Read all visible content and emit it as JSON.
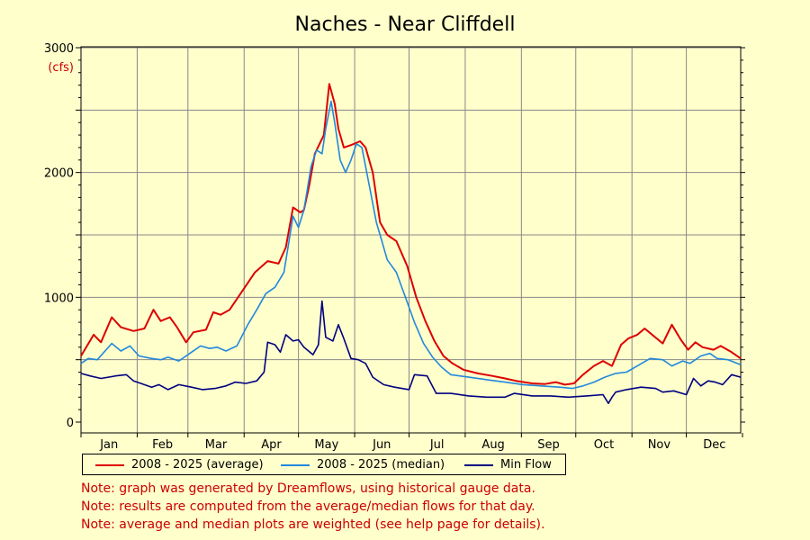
{
  "chart_data": {
    "type": "line",
    "title": "Naches - Near Cliffdell",
    "y_unit_label": "(cfs)",
    "ylim": [
      0,
      3000
    ],
    "yticks": [
      0,
      1000,
      2000,
      3000
    ],
    "months": [
      "Jan",
      "Feb",
      "Mar",
      "Apr",
      "May",
      "Jun",
      "Jul",
      "Aug",
      "Sep",
      "Oct",
      "Nov",
      "Dec"
    ],
    "x_unit": "day of year (1-365)",
    "grid": true,
    "legend_position": "bottom",
    "series": [
      {
        "name": "2008 - 2025 (average)",
        "color": "#dd0000",
        "points": [
          [
            1,
            530
          ],
          [
            8,
            700
          ],
          [
            12,
            640
          ],
          [
            18,
            840
          ],
          [
            23,
            760
          ],
          [
            30,
            730
          ],
          [
            36,
            750
          ],
          [
            41,
            900
          ],
          [
            45,
            810
          ],
          [
            50,
            840
          ],
          [
            54,
            760
          ],
          [
            59,
            640
          ],
          [
            63,
            720
          ],
          [
            70,
            740
          ],
          [
            74,
            880
          ],
          [
            78,
            860
          ],
          [
            83,
            900
          ],
          [
            90,
            1050
          ],
          [
            97,
            1200
          ],
          [
            104,
            1290
          ],
          [
            110,
            1270
          ],
          [
            114,
            1400
          ],
          [
            118,
            1720
          ],
          [
            122,
            1680
          ],
          [
            124,
            1700
          ],
          [
            127,
            1900
          ],
          [
            130,
            2150
          ],
          [
            135,
            2300
          ],
          [
            138,
            2710
          ],
          [
            141,
            2550
          ],
          [
            143,
            2350
          ],
          [
            146,
            2200
          ],
          [
            150,
            2220
          ],
          [
            155,
            2250
          ],
          [
            158,
            2200
          ],
          [
            162,
            2000
          ],
          [
            166,
            1600
          ],
          [
            170,
            1500
          ],
          [
            175,
            1450
          ],
          [
            181,
            1250
          ],
          [
            186,
            1000
          ],
          [
            191,
            810
          ],
          [
            196,
            650
          ],
          [
            201,
            530
          ],
          [
            206,
            470
          ],
          [
            212,
            420
          ],
          [
            220,
            390
          ],
          [
            228,
            370
          ],
          [
            235,
            350
          ],
          [
            241,
            330
          ],
          [
            250,
            310
          ],
          [
            257,
            305
          ],
          [
            263,
            320
          ],
          [
            268,
            300
          ],
          [
            273,
            310
          ],
          [
            278,
            380
          ],
          [
            284,
            450
          ],
          [
            289,
            490
          ],
          [
            294,
            450
          ],
          [
            299,
            620
          ],
          [
            303,
            670
          ],
          [
            308,
            700
          ],
          [
            312,
            750
          ],
          [
            317,
            690
          ],
          [
            322,
            630
          ],
          [
            327,
            780
          ],
          [
            332,
            660
          ],
          [
            336,
            580
          ],
          [
            340,
            640
          ],
          [
            344,
            600
          ],
          [
            350,
            580
          ],
          [
            354,
            610
          ],
          [
            360,
            560
          ],
          [
            365,
            510
          ]
        ]
      },
      {
        "name": "2008 - 2025 (median)",
        "color": "#2288dd",
        "points": [
          [
            1,
            470
          ],
          [
            5,
            510
          ],
          [
            10,
            500
          ],
          [
            18,
            630
          ],
          [
            23,
            570
          ],
          [
            28,
            610
          ],
          [
            33,
            530
          ],
          [
            40,
            510
          ],
          [
            45,
            500
          ],
          [
            49,
            520
          ],
          [
            55,
            490
          ],
          [
            62,
            560
          ],
          [
            67,
            610
          ],
          [
            72,
            590
          ],
          [
            76,
            600
          ],
          [
            81,
            570
          ],
          [
            87,
            610
          ],
          [
            93,
            780
          ],
          [
            98,
            900
          ],
          [
            103,
            1030
          ],
          [
            108,
            1080
          ],
          [
            113,
            1200
          ],
          [
            118,
            1650
          ],
          [
            121,
            1560
          ],
          [
            124,
            1700
          ],
          [
            128,
            2050
          ],
          [
            131,
            2180
          ],
          [
            134,
            2150
          ],
          [
            136,
            2350
          ],
          [
            139,
            2570
          ],
          [
            141,
            2400
          ],
          [
            144,
            2100
          ],
          [
            147,
            2000
          ],
          [
            150,
            2100
          ],
          [
            153,
            2230
          ],
          [
            156,
            2200
          ],
          [
            160,
            1900
          ],
          [
            164,
            1600
          ],
          [
            167,
            1450
          ],
          [
            170,
            1300
          ],
          [
            175,
            1200
          ],
          [
            180,
            1000
          ],
          [
            185,
            800
          ],
          [
            190,
            630
          ],
          [
            195,
            520
          ],
          [
            200,
            440
          ],
          [
            205,
            380
          ],
          [
            215,
            360
          ],
          [
            225,
            340
          ],
          [
            235,
            320
          ],
          [
            245,
            300
          ],
          [
            255,
            290
          ],
          [
            265,
            280
          ],
          [
            272,
            270
          ],
          [
            278,
            290
          ],
          [
            284,
            320
          ],
          [
            290,
            360
          ],
          [
            296,
            390
          ],
          [
            302,
            400
          ],
          [
            308,
            450
          ],
          [
            315,
            510
          ],
          [
            322,
            500
          ],
          [
            327,
            450
          ],
          [
            333,
            490
          ],
          [
            337,
            470
          ],
          [
            343,
            530
          ],
          [
            348,
            550
          ],
          [
            352,
            510
          ],
          [
            358,
            500
          ],
          [
            365,
            460
          ]
        ]
      },
      {
        "name": "Min Flow",
        "color": "#000080",
        "points": [
          [
            1,
            390
          ],
          [
            6,
            370
          ],
          [
            12,
            350
          ],
          [
            20,
            370
          ],
          [
            26,
            380
          ],
          [
            30,
            330
          ],
          [
            34,
            310
          ],
          [
            40,
            280
          ],
          [
            44,
            300
          ],
          [
            49,
            260
          ],
          [
            55,
            300
          ],
          [
            62,
            280
          ],
          [
            68,
            260
          ],
          [
            75,
            270
          ],
          [
            81,
            290
          ],
          [
            86,
            320
          ],
          [
            92,
            310
          ],
          [
            98,
            330
          ],
          [
            102,
            400
          ],
          [
            104,
            640
          ],
          [
            108,
            620
          ],
          [
            111,
            560
          ],
          [
            114,
            700
          ],
          [
            118,
            650
          ],
          [
            121,
            660
          ],
          [
            124,
            600
          ],
          [
            129,
            540
          ],
          [
            132,
            620
          ],
          [
            134,
            970
          ],
          [
            136,
            680
          ],
          [
            140,
            650
          ],
          [
            143,
            780
          ],
          [
            146,
            670
          ],
          [
            150,
            510
          ],
          [
            154,
            500
          ],
          [
            158,
            470
          ],
          [
            162,
            360
          ],
          [
            168,
            300
          ],
          [
            174,
            280
          ],
          [
            182,
            260
          ],
          [
            185,
            380
          ],
          [
            192,
            370
          ],
          [
            197,
            230
          ],
          [
            205,
            230
          ],
          [
            215,
            210
          ],
          [
            225,
            200
          ],
          [
            235,
            200
          ],
          [
            240,
            230
          ],
          [
            250,
            210
          ],
          [
            260,
            210
          ],
          [
            270,
            200
          ],
          [
            280,
            210
          ],
          [
            289,
            220
          ],
          [
            292,
            150
          ],
          [
            294,
            200
          ],
          [
            296,
            240
          ],
          [
            302,
            260
          ],
          [
            310,
            280
          ],
          [
            318,
            270
          ],
          [
            322,
            240
          ],
          [
            328,
            250
          ],
          [
            335,
            220
          ],
          [
            339,
            350
          ],
          [
            343,
            290
          ],
          [
            347,
            330
          ],
          [
            351,
            320
          ],
          [
            355,
            300
          ],
          [
            360,
            380
          ],
          [
            365,
            360
          ]
        ]
      }
    ],
    "notes": [
      "Note: graph was generated by Dreamflows, using historical gauge data.",
      "Note: results are computed from the average/median flows for that day.",
      "Note: average and median plots are weighted (see help page for details)."
    ]
  }
}
